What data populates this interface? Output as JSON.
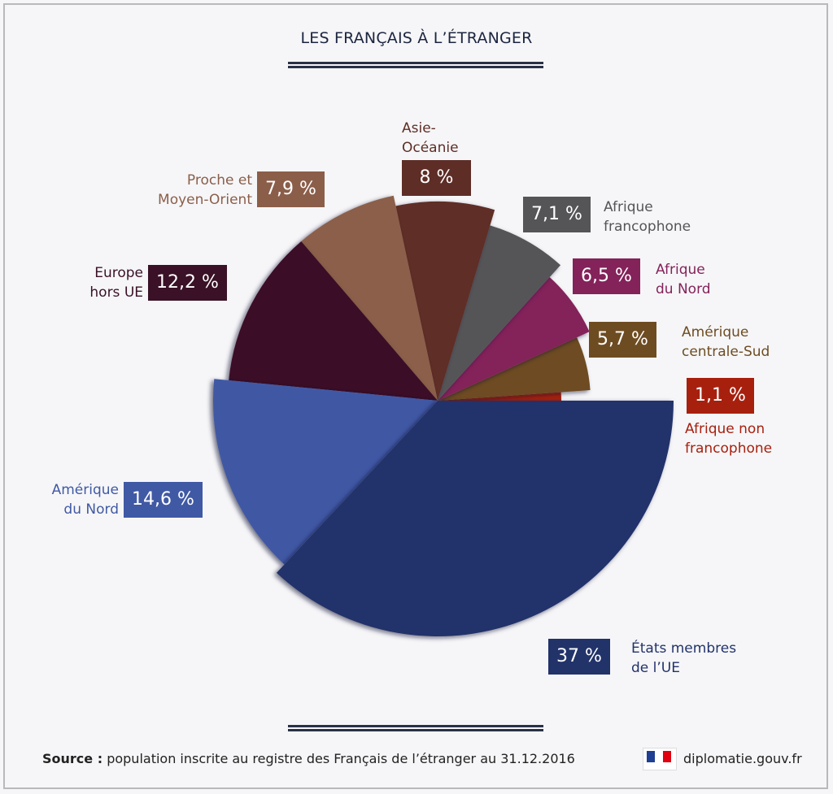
{
  "title": "LES FRANÇAIS À L’ÉTRANGER",
  "chart_data": {
    "type": "pie",
    "title": "LES FRANÇAIS À L’ÉTRANGER",
    "unit": "%",
    "slices": [
      {
        "label": "États membres de l’UE",
        "value": 37,
        "display": "37 %",
        "color": "#22336a"
      },
      {
        "label": "Amérique du Nord",
        "value": 14.6,
        "display": "14,6 %",
        "color": "#4059a4"
      },
      {
        "label": "Europe hors UE",
        "value": 12.2,
        "display": "12,2 %",
        "color": "#3a1126"
      },
      {
        "label": "Proche et Moyen-Orient",
        "value": 7.9,
        "display": "7,9 %",
        "color": "#8b5e4a"
      },
      {
        "label": "Asie-Océanie",
        "value": 8,
        "display": "8 %",
        "color": "#5e2d26"
      },
      {
        "label": "Afrique francophone",
        "value": 7.1,
        "display": "7,1 %",
        "color": "#555558"
      },
      {
        "label": "Afrique du Nord",
        "value": 6.5,
        "display": "6,5 %",
        "color": "#84225a"
      },
      {
        "label": "Amérique centrale-Sud",
        "value": 5.7,
        "display": "5,7 %",
        "color": "#6e4c22"
      },
      {
        "label": "Afrique non francophone",
        "value": 1.1,
        "display": "1,1 %",
        "color": "#a7200e"
      }
    ]
  },
  "labels": {
    "eu": [
      "États membres",
      "de l’UE"
    ],
    "amn": [
      "Amérique",
      "du Nord"
    ],
    "eur": [
      "Europe",
      "hors UE"
    ],
    "pmo": [
      "Proche et",
      "Moyen-Orient"
    ],
    "asie": [
      "Asie-",
      "Océanie"
    ],
    "afr": [
      "Afrique",
      "francophone"
    ],
    "afn": [
      "Afrique",
      "du Nord"
    ],
    "acs": [
      "Amérique",
      "centrale-Sud"
    ],
    "anf": [
      "Afrique non",
      "francophone"
    ]
  },
  "footer": {
    "source_label": "Source :",
    "source_text": " population inscrite au registre des Français de l’étranger au 31.12.2016",
    "site": "diplomatie.gouv.fr"
  }
}
